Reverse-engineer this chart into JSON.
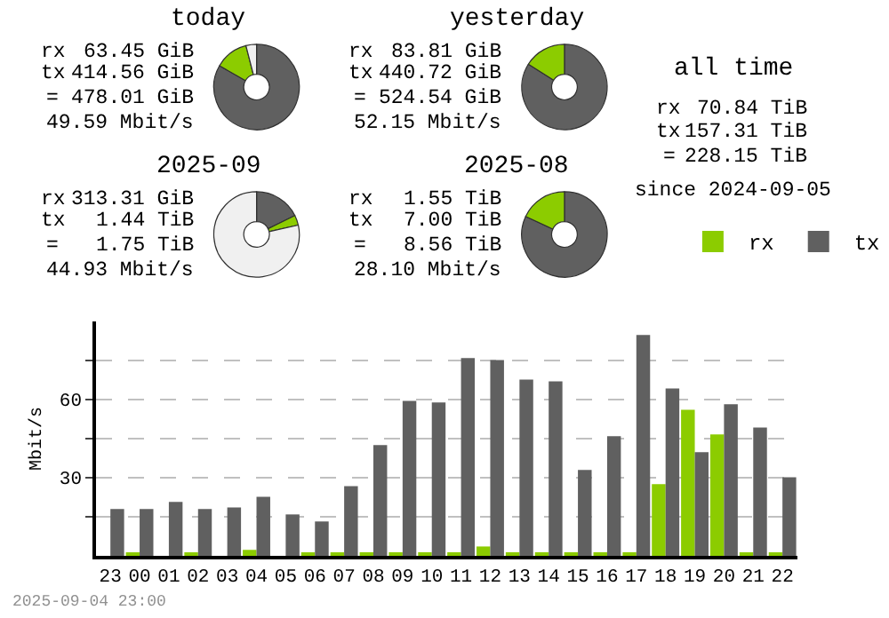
{
  "chart_data": [
    {
      "type": "donut",
      "title": "today",
      "categories": [
        null,
        null,
        null
      ],
      "values": [
        83.3,
        12.7,
        4.0
      ],
      "colors": [
        "#606060",
        "#8ccc00",
        "#f0f0f0"
      ],
      "annotations": [
        "rx",
        "63.45 GiB",
        "tx",
        "414.56 GiB",
        "=",
        "478.01 GiB",
        "49.59 Mbit/s"
      ]
    },
    {
      "type": "donut",
      "title": "yesterday",
      "categories": [
        null,
        null
      ],
      "values": [
        84.0,
        16.0
      ],
      "colors": [
        "#606060",
        "#8ccc00"
      ],
      "annotations": [
        "rx",
        "83.81 GiB",
        "tx",
        "440.72 GiB",
        "=",
        "524.54 GiB",
        "52.15 Mbit/s"
      ]
    },
    {
      "type": "other",
      "title": "all time",
      "annotations": [
        "rx",
        "70.84 TiB",
        "tx",
        "157.31 TiB",
        "=",
        "228.15 TiB",
        "since 2024-09-05"
      ]
    },
    {
      "type": "donut",
      "title": "2025-09",
      "categories": [
        null,
        null,
        null
      ],
      "values": [
        17.7,
        3.8,
        78.5
      ],
      "colors": [
        "#606060",
        "#8ccc00",
        "#f0f0f0"
      ],
      "annotations": [
        "rx",
        "313.31 GiB",
        "tx",
        "1.44 TiB",
        "=",
        "1.75 TiB",
        "44.93 Mbit/s"
      ]
    },
    {
      "type": "donut",
      "title": "2025-08",
      "categories": [
        null,
        null
      ],
      "values": [
        81.9,
        18.1
      ],
      "colors": [
        "#606060",
        "#8ccc00"
      ],
      "annotations": [
        "rx",
        "1.55 TiB",
        "tx",
        "7.00 TiB",
        "=",
        "8.56 TiB",
        "28.10 Mbit/s"
      ]
    },
    {
      "type": "bar",
      "ylabel": "Mbit/s",
      "categories": [
        "23",
        "00",
        "01",
        "02",
        "03",
        "04",
        "05",
        "06",
        "07",
        "08",
        "09",
        "10",
        "11",
        "12",
        "13",
        "14",
        "15",
        "16",
        "17",
        "18",
        "19",
        "20",
        "21",
        "22"
      ],
      "series": [
        {
          "name": "rx",
          "color": "#8ccc00",
          "values": [
            0,
            0.7,
            0,
            0.7,
            0,
            2.3,
            0,
            0.7,
            0.7,
            1.4,
            1.4,
            1.4,
            1.4,
            3.6,
            1.4,
            1.4,
            1.4,
            1.4,
            1.4,
            27.5,
            56.1,
            46.6,
            0.7,
            0.7
          ]
        },
        {
          "name": "tx",
          "color": "#606060",
          "values": [
            18.0,
            18.0,
            20.7,
            18.0,
            18.6,
            22.7,
            15.9,
            13.2,
            26.8,
            42.5,
            59.5,
            58.9,
            75.9,
            75.2,
            67.7,
            67.0,
            33.0,
            45.9,
            84.8,
            64.3,
            39.8,
            58.2,
            49.3,
            30.2
          ]
        }
      ],
      "ylim": [
        0,
        90
      ],
      "yticks": [
        {
          "value": 15,
          "label": null
        },
        30,
        {
          "value": 45,
          "label": null
        },
        60,
        {
          "value": 75,
          "label": null
        }
      ],
      "grid": "y",
      "legend": "top right",
      "annotations": [
        "2025-09-04 23:00"
      ]
    }
  ]
}
